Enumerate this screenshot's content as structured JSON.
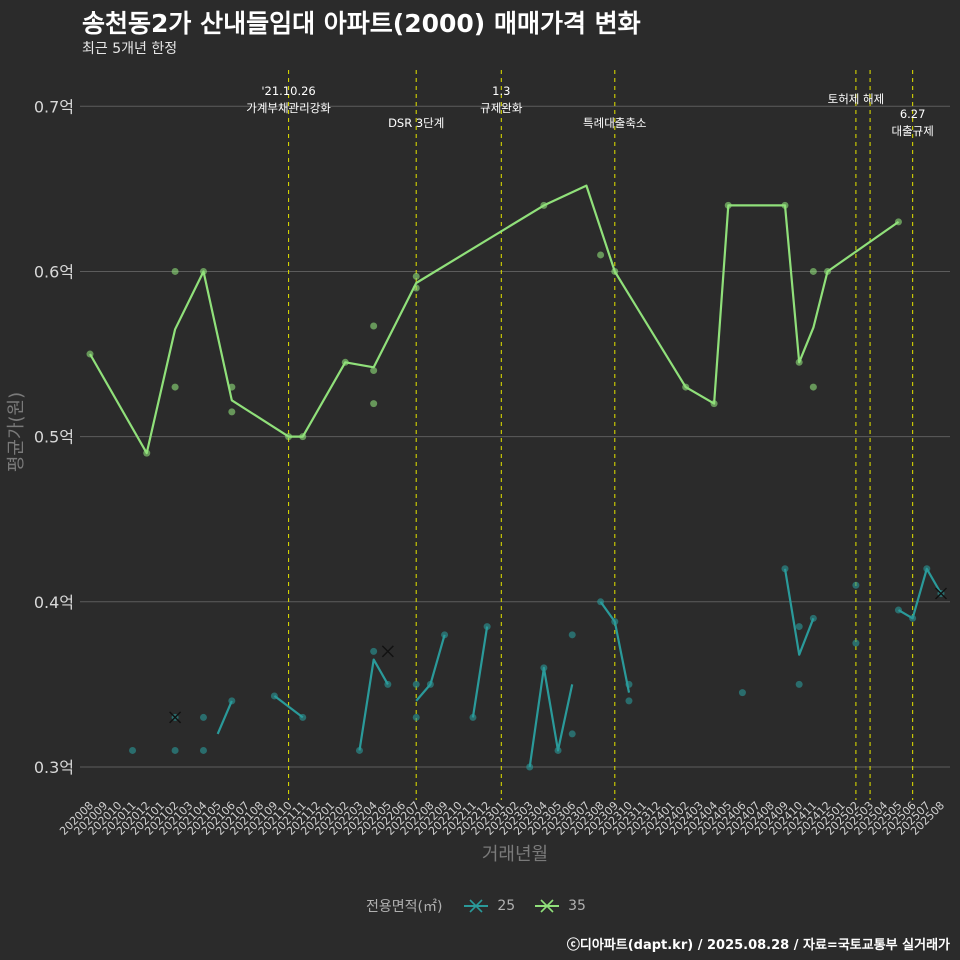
{
  "title": "송천동2가 산내들임대 아파트(2000) 매매가격 변화",
  "subtitle": "최근 5개년 한정",
  "caption": "ⓒ디아파트(dapt.kr) / 2025.08.28 / 자료=국토교통부 실거래가",
  "chart_data": {
    "type": "line",
    "xlabel": "거래년월",
    "ylabel": "평균가(원)",
    "ylim": [
      0.28,
      0.725
    ],
    "y_ticks": [
      {
        "value": 0.3,
        "label": "0.3억"
      },
      {
        "value": 0.4,
        "label": "0.4억"
      },
      {
        "value": 0.5,
        "label": "0.5억"
      },
      {
        "value": 0.6,
        "label": "0.6억"
      },
      {
        "value": 0.7,
        "label": "0.7억"
      }
    ],
    "categories": [
      "202008",
      "202009",
      "202010",
      "202011",
      "202012",
      "202101",
      "202102",
      "202103",
      "202104",
      "202105",
      "202106",
      "202107",
      "202108",
      "202109",
      "202110",
      "202111",
      "202112",
      "202201",
      "202202",
      "202203",
      "202204",
      "202205",
      "202206",
      "202207",
      "202208",
      "202209",
      "202210",
      "202211",
      "202212",
      "202301",
      "202302",
      "202303",
      "202304",
      "202305",
      "202306",
      "202307",
      "202308",
      "202309",
      "202310",
      "202311",
      "202312",
      "202401",
      "202402",
      "202403",
      "202404",
      "202405",
      "202406",
      "202407",
      "202408",
      "202409",
      "202410",
      "202411",
      "202412",
      "202501",
      "202502",
      "202503",
      "202504",
      "202505",
      "202506",
      "202507",
      "202508"
    ],
    "grid": true,
    "legend": {
      "title": "전용면적(㎡)",
      "position": "bottom"
    },
    "series": [
      {
        "name": "25",
        "color": "#2a9a9a",
        "segments": [
          [
            [
              "202105",
              0.32
            ],
            [
              "202106",
              0.34
            ]
          ],
          [
            [
              "202109",
              0.343
            ],
            [
              "202111",
              0.33
            ]
          ],
          [
            [
              "202203",
              0.31
            ],
            [
              "202204",
              0.365
            ],
            [
              "202205",
              0.35
            ]
          ],
          [
            [
              "202207",
              0.34
            ],
            [
              "202208",
              0.35
            ],
            [
              "202209",
              0.38
            ]
          ],
          [
            [
              "202211",
              0.33
            ],
            [
              "202212",
              0.385
            ]
          ],
          [
            [
              "202303",
              0.3
            ],
            [
              "202304",
              0.36
            ],
            [
              "202305",
              0.31
            ],
            [
              "202306",
              0.35
            ]
          ],
          [
            [
              "202308",
              0.4
            ],
            [
              "202309",
              0.388
            ],
            [
              "202310",
              0.345
            ]
          ],
          [
            [
              "202409",
              0.42
            ],
            [
              "202410",
              0.368
            ],
            [
              "202411",
              0.39
            ]
          ],
          [
            [
              "202505",
              0.395
            ],
            [
              "202506",
              0.39
            ],
            [
              "202507",
              0.42
            ],
            [
              "202508",
              0.405
            ]
          ]
        ],
        "points": [
          [
            "202011",
            0.31
          ],
          [
            "202102",
            0.33
          ],
          [
            "202102",
            0.31
          ],
          [
            "202104",
            0.33
          ],
          [
            "202104",
            0.31
          ],
          [
            "202106",
            0.34
          ],
          [
            "202109",
            0.343
          ],
          [
            "202111",
            0.33
          ],
          [
            "202203",
            0.31
          ],
          [
            "202204",
            0.37
          ],
          [
            "202205",
            0.35
          ],
          [
            "202207",
            0.35
          ],
          [
            "202207",
            0.33
          ],
          [
            "202208",
            0.35
          ],
          [
            "202209",
            0.38
          ],
          [
            "202211",
            0.33
          ],
          [
            "202212",
            0.385
          ],
          [
            "202303",
            0.3
          ],
          [
            "202304",
            0.36
          ],
          [
            "202305",
            0.31
          ],
          [
            "202306",
            0.38
          ],
          [
            "202306",
            0.32
          ],
          [
            "202308",
            0.4
          ],
          [
            "202309",
            0.388
          ],
          [
            "202310",
            0.35
          ],
          [
            "202310",
            0.34
          ],
          [
            "202406",
            0.345
          ],
          [
            "202409",
            0.42
          ],
          [
            "202410",
            0.385
          ],
          [
            "202410",
            0.35
          ],
          [
            "202411",
            0.39
          ],
          [
            "202502",
            0.41
          ],
          [
            "202502",
            0.375
          ],
          [
            "202505",
            0.395
          ],
          [
            "202506",
            0.39
          ],
          [
            "202507",
            0.42
          ],
          [
            "202508",
            0.405
          ]
        ],
        "crosses": [
          [
            "202102",
            0.33
          ],
          [
            "202205",
            0.37
          ],
          [
            "202508",
            0.405
          ]
        ]
      },
      {
        "name": "35",
        "color": "#90e07a",
        "segments": [
          [
            [
              "202008",
              0.55
            ],
            [
              "202012",
              0.49
            ],
            [
              "202102",
              0.565
            ],
            [
              "202104",
              0.6
            ],
            [
              "202106",
              0.522
            ],
            [
              "202110",
              0.5
            ],
            [
              "202111",
              0.5
            ],
            [
              "202202",
              0.545
            ],
            [
              "202204",
              0.542
            ],
            [
              "202207",
              0.593
            ],
            [
              "202304",
              0.64
            ],
            [
              "202307",
              0.652
            ],
            [
              "202309",
              0.6
            ],
            [
              "202402",
              0.53
            ],
            [
              "202404",
              0.52
            ],
            [
              "202405",
              0.64
            ],
            [
              "202409",
              0.64
            ],
            [
              "202410",
              0.545
            ],
            [
              "202411",
              0.566
            ],
            [
              "202412",
              0.6
            ],
            [
              "202505",
              0.63
            ]
          ]
        ],
        "points": [
          [
            "202008",
            0.55
          ],
          [
            "202012",
            0.49
          ],
          [
            "202102",
            0.6
          ],
          [
            "202102",
            0.53
          ],
          [
            "202104",
            0.6
          ],
          [
            "202106",
            0.53
          ],
          [
            "202106",
            0.515
          ],
          [
            "202110",
            0.5
          ],
          [
            "202111",
            0.5
          ],
          [
            "202202",
            0.545
          ],
          [
            "202204",
            0.567
          ],
          [
            "202204",
            0.54
          ],
          [
            "202204",
            0.52
          ],
          [
            "202207",
            0.597
          ],
          [
            "202207",
            0.59
          ],
          [
            "202304",
            0.64
          ],
          [
            "202308",
            0.61
          ],
          [
            "202309",
            0.6
          ],
          [
            "202402",
            0.53
          ],
          [
            "202404",
            0.52
          ],
          [
            "202405",
            0.64
          ],
          [
            "202409",
            0.64
          ],
          [
            "202410",
            0.545
          ],
          [
            "202411",
            0.6
          ],
          [
            "202411",
            0.53
          ],
          [
            "202412",
            0.6
          ],
          [
            "202505",
            0.63
          ]
        ],
        "crosses": []
      }
    ],
    "events": [
      {
        "x": "202110",
        "lines": [
          "'21.10.26",
          "가계부채관리강화"
        ],
        "level": 1
      },
      {
        "x": "202207",
        "lines": [
          "DSR 3단계"
        ],
        "level": 3
      },
      {
        "x": "202301",
        "lines": [
          "1.3",
          "규제완화"
        ],
        "level": 1
      },
      {
        "x": "202309",
        "lines": [
          "특례대출축소"
        ],
        "level": 3
      },
      {
        "x": "202502",
        "lines": [
          "토허제 해제"
        ],
        "level": 2
      },
      {
        "x": "202503",
        "lines": [],
        "level": 2
      },
      {
        "x": "202506",
        "lines": [
          "6.27",
          "대출규제"
        ],
        "level": 4
      }
    ]
  }
}
